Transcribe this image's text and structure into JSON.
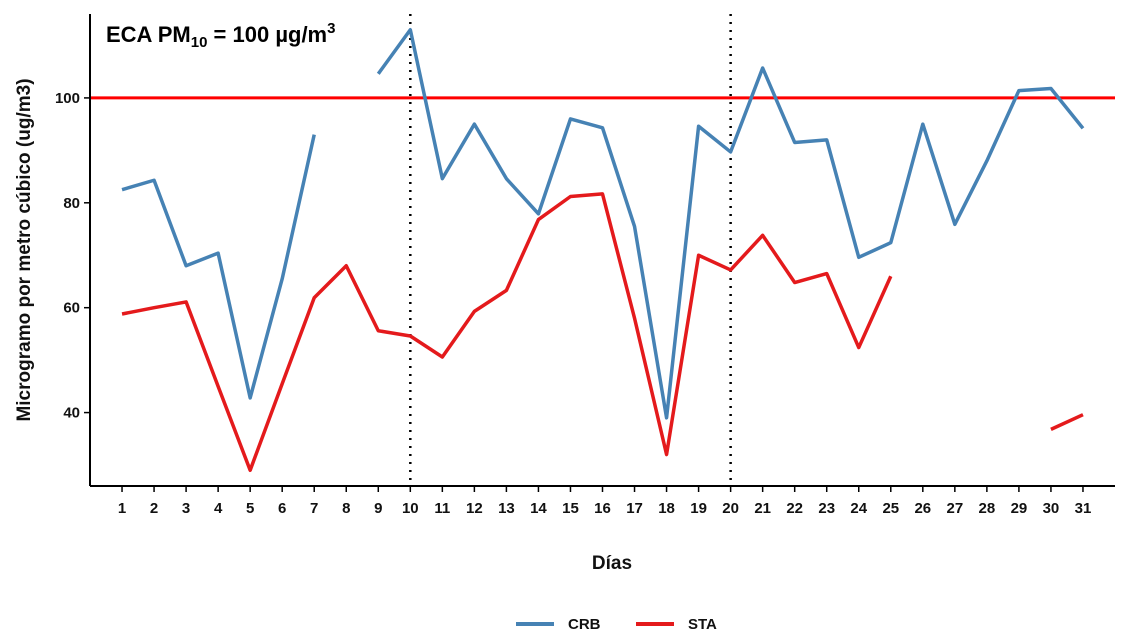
{
  "chart_data": {
    "type": "line",
    "title": "",
    "xlabel": "Días",
    "ylabel": "Microgramo por metro cúbico (ug/m3)",
    "x": [
      1,
      2,
      3,
      4,
      5,
      6,
      7,
      8,
      9,
      10,
      11,
      12,
      13,
      14,
      15,
      16,
      17,
      18,
      19,
      20,
      21,
      22,
      23,
      24,
      25,
      26,
      27,
      28,
      29,
      30,
      31
    ],
    "ylim": [
      26,
      116
    ],
    "yticks": [
      40,
      60,
      80,
      100
    ],
    "grid": false,
    "legend_position": "bottom",
    "series": [
      {
        "name": "CRB",
        "color": "#4682B4",
        "values": [
          82.5,
          84.3,
          68.0,
          70.4,
          42.8,
          65.5,
          93.0,
          null,
          104.6,
          113.0,
          84.6,
          95.0,
          84.6,
          77.9,
          96.0,
          94.3,
          75.5,
          39.0,
          94.6,
          89.7,
          105.7,
          91.5,
          92.0,
          69.6,
          72.4,
          95.0,
          75.9,
          88.0,
          101.4,
          101.8,
          94.2
        ]
      },
      {
        "name": "STA",
        "color": "#E41A1C",
        "values": [
          58.8,
          60.0,
          61.1,
          45.0,
          29.0,
          45.5,
          61.9,
          68.0,
          55.6,
          54.6,
          50.6,
          59.3,
          63.3,
          76.8,
          81.2,
          81.7,
          58.0,
          32.0,
          70.0,
          67.2,
          73.8,
          64.8,
          66.5,
          52.4,
          66.0,
          null,
          null,
          null,
          null,
          36.8,
          39.6
        ]
      }
    ],
    "reference_lines": [
      {
        "axis": "y",
        "value": 100,
        "color": "#FF0000",
        "style": "solid"
      },
      {
        "axis": "x",
        "value": 10,
        "color": "#000000",
        "style": "dotted"
      },
      {
        "axis": "x",
        "value": 20,
        "color": "#000000",
        "style": "dotted"
      }
    ],
    "annotation": {
      "prefix": "ECA PM",
      "subscript": "10",
      "middle": " = 100 µg/m",
      "superscript": "3",
      "color": "#FF0000"
    }
  }
}
